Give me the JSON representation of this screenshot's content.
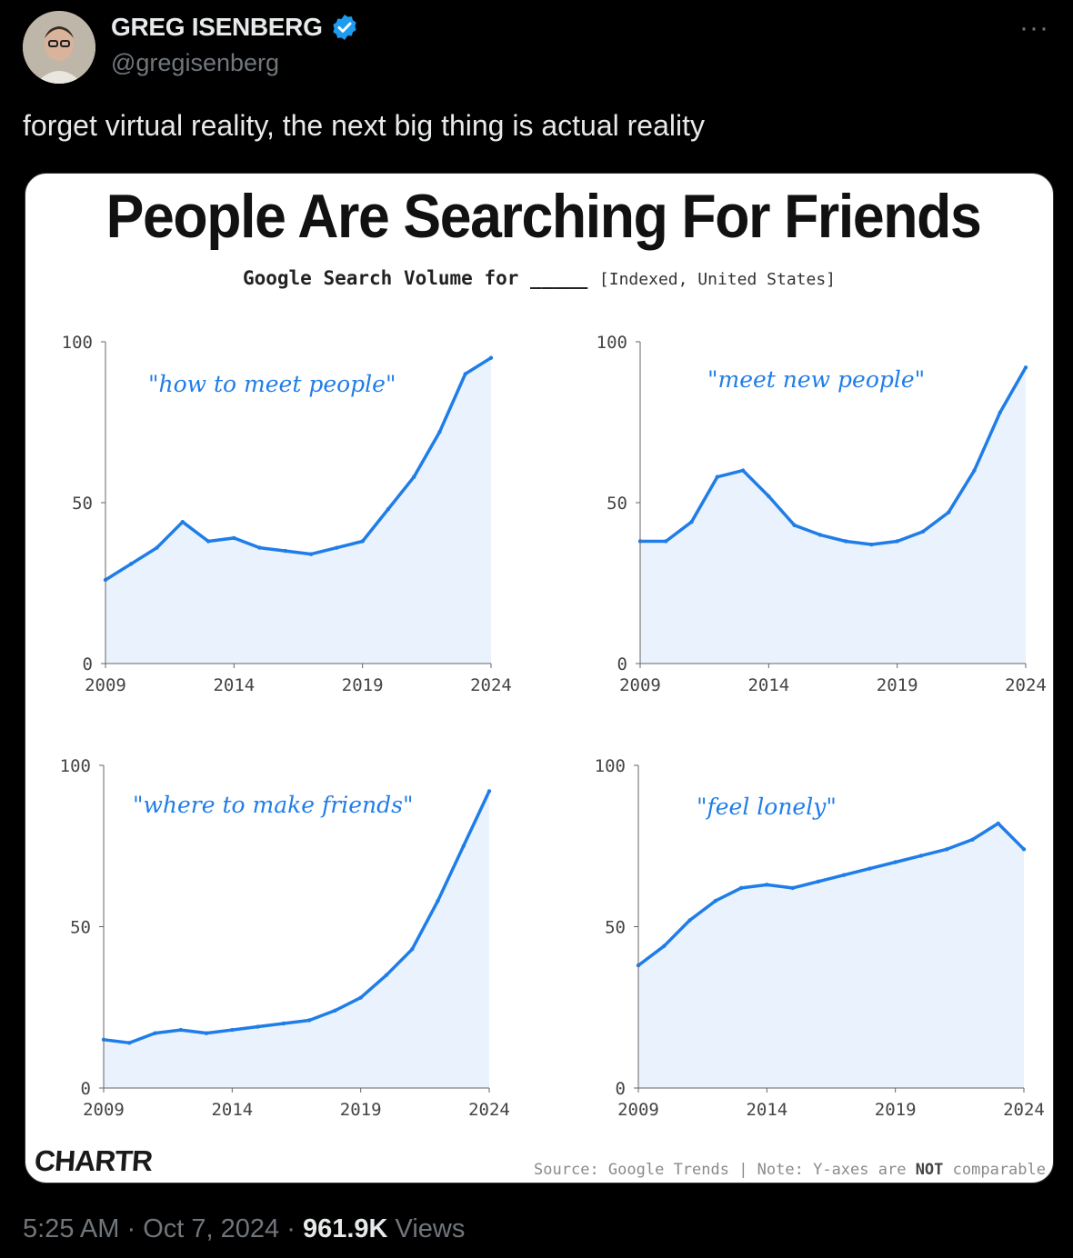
{
  "tweet": {
    "author_name": "GREG ISENBERG",
    "handle": "@gregisenberg",
    "more_label": "···",
    "text": "forget virtual reality, the next big thing is actual reality",
    "time": "5:25 AM",
    "date": "Oct 7, 2024",
    "separator": "·",
    "views_count": "961.9K",
    "views_label": "Views",
    "verified_color": "#1d9bf0"
  },
  "infographic": {
    "title": "People Are Searching For Friends",
    "subtitle_main": "Google Search Volume for _____",
    "subtitle_note": "[Indexed, United States]",
    "logo": "CHARTR",
    "source_prefix": "Source: Google Trends | Note: Y-axes are ",
    "source_bold": "NOT",
    "source_suffix": " comparable",
    "line_color": "#1f7de8",
    "fill_color": "#e9f2fd"
  },
  "chart_data": [
    {
      "type": "area",
      "title": "\"how to meet people\"",
      "x": [
        2009,
        2010,
        2011,
        2012,
        2013,
        2014,
        2015,
        2016,
        2017,
        2018,
        2019,
        2020,
        2021,
        2022,
        2023,
        2024
      ],
      "values": [
        26,
        31,
        36,
        44,
        38,
        39,
        36,
        35,
        34,
        36,
        38,
        48,
        58,
        72,
        90,
        95
      ],
      "xticks": [
        "2009",
        "2014",
        "2019",
        "2024"
      ],
      "yticks": [
        "0",
        "50",
        "100"
      ],
      "ylim": [
        0,
        100
      ],
      "grid": false
    },
    {
      "type": "area",
      "title": "\"meet new people\"",
      "x": [
        2009,
        2010,
        2011,
        2012,
        2013,
        2014,
        2015,
        2016,
        2017,
        2018,
        2019,
        2020,
        2021,
        2022,
        2023,
        2024
      ],
      "values": [
        38,
        38,
        44,
        58,
        60,
        52,
        43,
        40,
        38,
        37,
        38,
        41,
        47,
        60,
        78,
        92
      ],
      "xticks": [
        "2009",
        "2014",
        "2019",
        "2024"
      ],
      "yticks": [
        "0",
        "50",
        "100"
      ],
      "ylim": [
        0,
        100
      ],
      "grid": false
    },
    {
      "type": "area",
      "title": "\"where to make friends\"",
      "x": [
        2009,
        2010,
        2011,
        2012,
        2013,
        2014,
        2015,
        2016,
        2017,
        2018,
        2019,
        2020,
        2021,
        2022,
        2023,
        2024
      ],
      "values": [
        15,
        14,
        17,
        18,
        17,
        18,
        19,
        20,
        21,
        24,
        28,
        35,
        43,
        58,
        75,
        92
      ],
      "xticks": [
        "2009",
        "2014",
        "2019",
        "2024"
      ],
      "yticks": [
        "0",
        "50",
        "100"
      ],
      "ylim": [
        0,
        100
      ],
      "grid": false
    },
    {
      "type": "area",
      "title": "\"feel lonely\"",
      "x": [
        2009,
        2010,
        2011,
        2012,
        2013,
        2014,
        2015,
        2016,
        2017,
        2018,
        2019,
        2020,
        2021,
        2022,
        2023,
        2024
      ],
      "values": [
        38,
        44,
        52,
        58,
        62,
        63,
        62,
        64,
        66,
        68,
        70,
        72,
        74,
        77,
        82,
        74
      ],
      "xticks": [
        "2009",
        "2014",
        "2019",
        "2024"
      ],
      "yticks": [
        "0",
        "50",
        "100"
      ],
      "ylim": [
        0,
        100
      ],
      "grid": false
    }
  ]
}
